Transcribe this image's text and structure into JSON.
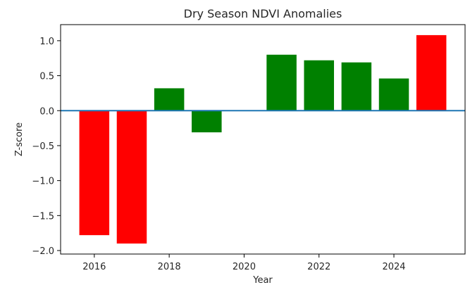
{
  "chart_data": {
    "type": "bar",
    "title": "Dry Season NDVI Anomalies",
    "xlabel": "Year",
    "ylabel": "Z-score",
    "xlim": [
      2015.1,
      2025.9
    ],
    "ylim": [
      -2.05,
      1.23
    ],
    "xticks": [
      2016,
      2018,
      2020,
      2022,
      2024
    ],
    "yticks": [
      1.0,
      0.5,
      0.0,
      -0.5,
      -1.0,
      -1.5,
      -2.0
    ],
    "ytick_labels": [
      "1.0",
      "0.5",
      "0.0",
      "−0.5",
      "−1.0",
      "−1.5",
      "−2.0"
    ],
    "bar_width": 0.8,
    "x": [
      2016,
      2017,
      2018,
      2019,
      2020,
      2021,
      2022,
      2023,
      2024,
      2025
    ],
    "values": [
      -1.78,
      -1.9,
      0.32,
      -0.31,
      0.0,
      0.8,
      0.72,
      0.69,
      0.46,
      1.08
    ],
    "bar_colors": [
      "#ff0000",
      "#ff0000",
      "#008000",
      "#008000",
      "#008000",
      "#008000",
      "#008000",
      "#008000",
      "#008000",
      "#ff0000"
    ],
    "zero_line_color": "#1f77b4",
    "grid": false,
    "legend": "none"
  }
}
